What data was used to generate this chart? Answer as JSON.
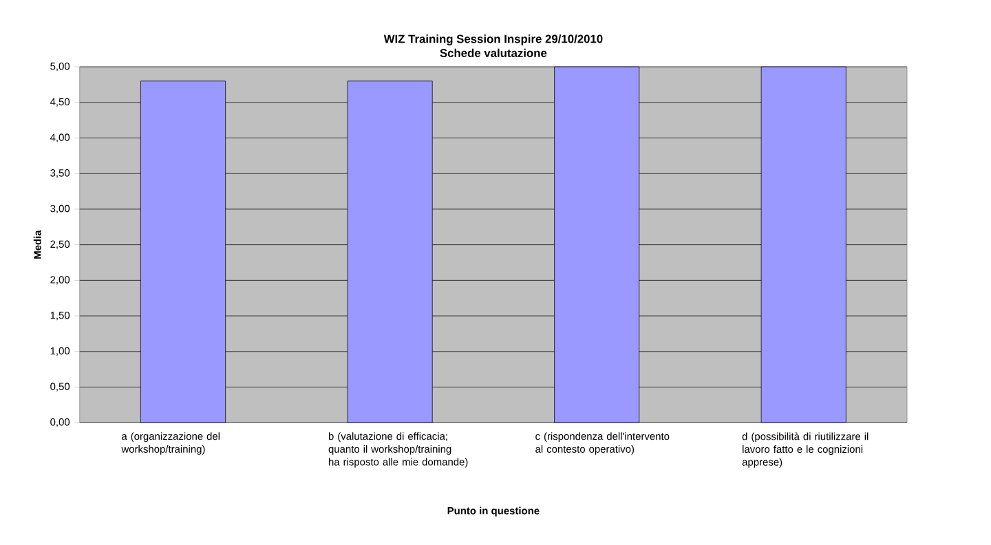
{
  "chart_data": {
    "type": "bar",
    "title": "WIZ Training Session Inspire 29/10/2010",
    "subtitle": "Schede valutazione",
    "xlabel": "Punto in questione",
    "ylabel": "Media",
    "categories": [
      "a (organizzazione del workshop/training)",
      "b (valutazione di efficacia; quanto il workshop/training ha risposto alle mie domande)",
      "c (rispondenza dell'intervento al contesto operativo)",
      "d (possibilità di riutilizzare il lavoro fatto e le cognizioni apprese)"
    ],
    "values": [
      4.8,
      4.8,
      5.0,
      5.0
    ],
    "color": "#9999ff",
    "ylim": [
      0,
      5
    ],
    "yticks": [
      {
        "value": 0,
        "label": "0,00"
      },
      {
        "value": 0.5,
        "label": "0,50"
      },
      {
        "value": 1,
        "label": "1,00"
      },
      {
        "value": 1.5,
        "label": "1,50"
      },
      {
        "value": 2,
        "label": "2,00"
      },
      {
        "value": 2.5,
        "label": "2,50"
      },
      {
        "value": 3,
        "label": "3,00"
      },
      {
        "value": 3.5,
        "label": "3,50"
      },
      {
        "value": 4,
        "label": "4,00"
      },
      {
        "value": 4.5,
        "label": "4,50"
      },
      {
        "value": 5,
        "label": "5,00"
      }
    ],
    "grid": "y"
  }
}
